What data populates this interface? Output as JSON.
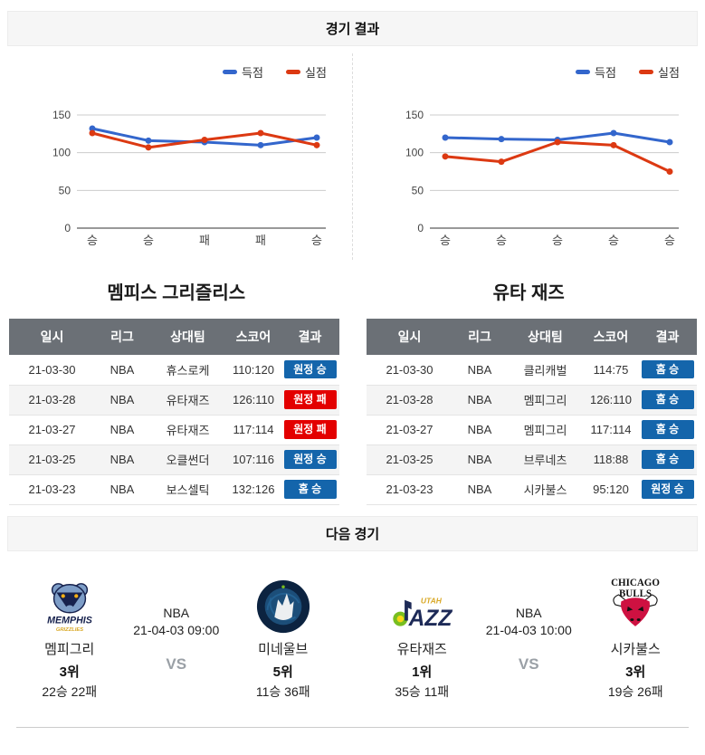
{
  "page": {
    "results_header": "경기 결과",
    "next_header": "다음 경기"
  },
  "colors": {
    "points_line": "#3366cc",
    "conceded_line": "#dc3912",
    "win_badge": "#1465ab",
    "loss_badge": "#e30000",
    "table_header_bg": "#6b7076"
  },
  "chart_data": [
    {
      "type": "line",
      "team": "멤피스 그리즐리스",
      "categories": [
        "승",
        "승",
        "패",
        "패",
        "승"
      ],
      "series": [
        {
          "name": "득점",
          "color": "#3366cc",
          "values": [
            132,
            116,
            114,
            110,
            120
          ]
        },
        {
          "name": "실점",
          "color": "#dc3912",
          "values": [
            126,
            107,
            117,
            126,
            110
          ]
        }
      ],
      "ylim": [
        0,
        150
      ],
      "yticks": [
        0,
        50,
        100,
        150
      ],
      "grid": true,
      "legend_position": "top-right"
    },
    {
      "type": "line",
      "team": "유타 재즈",
      "categories": [
        "승",
        "승",
        "승",
        "승",
        "승"
      ],
      "series": [
        {
          "name": "득점",
          "color": "#3366cc",
          "values": [
            120,
            118,
            117,
            126,
            114
          ]
        },
        {
          "name": "실점",
          "color": "#dc3912",
          "values": [
            95,
            88,
            114,
            110,
            75
          ]
        }
      ],
      "ylim": [
        0,
        150
      ],
      "yticks": [
        0,
        50,
        100,
        150
      ],
      "grid": true,
      "legend_position": "top-right"
    }
  ],
  "tables": [
    {
      "team_title": "멤피스 그리즐리스",
      "columns": [
        "일시",
        "리그",
        "상대팀",
        "스코어",
        "결과"
      ],
      "rows": [
        {
          "date": "21-03-30",
          "league": "NBA",
          "opponent": "휴스로케",
          "score": "110:120",
          "result": "원정 승",
          "result_type": "win"
        },
        {
          "date": "21-03-28",
          "league": "NBA",
          "opponent": "유타재즈",
          "score": "126:110",
          "result": "원정 패",
          "result_type": "loss"
        },
        {
          "date": "21-03-27",
          "league": "NBA",
          "opponent": "유타재즈",
          "score": "117:114",
          "result": "원정 패",
          "result_type": "loss"
        },
        {
          "date": "21-03-25",
          "league": "NBA",
          "opponent": "오클썬더",
          "score": "107:116",
          "result": "원정 승",
          "result_type": "win"
        },
        {
          "date": "21-03-23",
          "league": "NBA",
          "opponent": "보스셀틱",
          "score": "132:126",
          "result": "홈 승",
          "result_type": "win"
        }
      ]
    },
    {
      "team_title": "유타 재즈",
      "columns": [
        "일시",
        "리그",
        "상대팀",
        "스코어",
        "결과"
      ],
      "rows": [
        {
          "date": "21-03-30",
          "league": "NBA",
          "opponent": "클리캐벌",
          "score": "114:75",
          "result": "홈 승",
          "result_type": "win"
        },
        {
          "date": "21-03-28",
          "league": "NBA",
          "opponent": "멤피그리",
          "score": "126:110",
          "result": "홈 승",
          "result_type": "win"
        },
        {
          "date": "21-03-27",
          "league": "NBA",
          "opponent": "멤피그리",
          "score": "117:114",
          "result": "홈 승",
          "result_type": "win"
        },
        {
          "date": "21-03-25",
          "league": "NBA",
          "opponent": "브루네츠",
          "score": "118:88",
          "result": "홈 승",
          "result_type": "win"
        },
        {
          "date": "21-03-23",
          "league": "NBA",
          "opponent": "시카불스",
          "score": "95:120",
          "result": "원정 승",
          "result_type": "win"
        }
      ]
    }
  ],
  "next_games": [
    {
      "league": "NBA",
      "datetime": "21-04-03 09:00",
      "vs": "VS",
      "home": {
        "name": "멤피그리",
        "rank": "3위",
        "record": "22승 22패",
        "logo": "memphis-grizzlies-logo"
      },
      "away": {
        "name": "미네울브",
        "rank": "5위",
        "record": "11승 36패",
        "logo": "minnesota-timberwolves-logo"
      }
    },
    {
      "league": "NBA",
      "datetime": "21-04-03 10:00",
      "vs": "VS",
      "home": {
        "name": "유타재즈",
        "rank": "1위",
        "record": "35승 11패",
        "logo": "utah-jazz-logo"
      },
      "away": {
        "name": "시카불스",
        "rank": "3위",
        "record": "19승 26패",
        "logo": "chicago-bulls-logo"
      }
    }
  ]
}
